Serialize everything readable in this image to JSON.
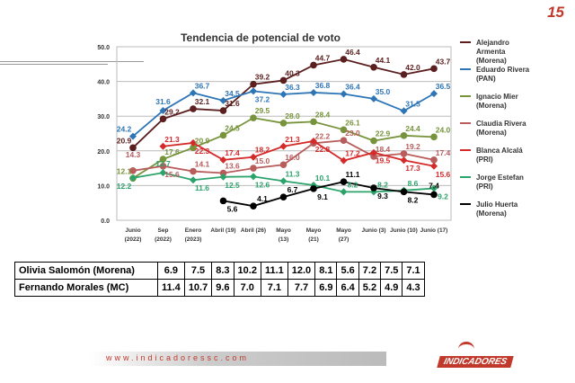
{
  "page_number": "15",
  "chart_data": {
    "type": "line",
    "title": "Tendencia de potencial de voto",
    "ylim": [
      0,
      50
    ],
    "yticks": [
      "0.0",
      "10.0",
      "20.0",
      "30.0",
      "40.0",
      "50.0"
    ],
    "categories": [
      [
        "Junio",
        "(2022)"
      ],
      [
        "Sep",
        "(2022)"
      ],
      [
        "Enero",
        "(2023)"
      ],
      [
        "Abril (19)",
        ""
      ],
      [
        "Abril (26)",
        ""
      ],
      [
        "Mayo",
        "(13)"
      ],
      [
        "Mayo",
        "(21)"
      ],
      [
        "Mayo",
        "(27)"
      ],
      [
        "Junio (3)",
        ""
      ],
      [
        "Junio (10)",
        ""
      ],
      [
        "Junio (17)",
        ""
      ]
    ],
    "series": [
      {
        "name": "Alejandro Armenta (Morena)",
        "legend": [
          "Alejandro",
          "Armenta",
          "(Morena)"
        ],
        "color": "#5b1f1f",
        "marker": "circle",
        "values": [
          20.9,
          29.2,
          32.1,
          31.6,
          39.2,
          40.3,
          44.7,
          46.4,
          44.1,
          42.0,
          43.7
        ]
      },
      {
        "name": "Eduardo Rivera (PAN)",
        "legend": [
          "Eduardo Rivera",
          "(PAN)"
        ],
        "color": "#2e75b6",
        "marker": "diamond",
        "values": [
          24.2,
          31.6,
          36.7,
          34.5,
          37.2,
          36.3,
          36.8,
          36.4,
          35.0,
          31.5,
          36.5
        ]
      },
      {
        "name": "Ignacio Mier (Morena)",
        "legend": [
          "Ignacio Mier",
          "(Morena)"
        ],
        "color": "#77933c",
        "marker": "circle",
        "values": [
          12.1,
          17.6,
          20.9,
          24.5,
          29.5,
          28.0,
          28.4,
          26.1,
          22.9,
          24.4,
          24.0
        ]
      },
      {
        "name": "Claudia Rivera (Morena)",
        "legend": [
          "Claudia Rivera",
          "(Morena)"
        ],
        "color": "#b85c5c",
        "marker": "circle",
        "values": [
          14.3,
          15.6,
          14.1,
          13.6,
          15.0,
          16.0,
          22.2,
          23.0,
          18.4,
          19.2,
          17.4
        ]
      },
      {
        "name": "Blanca Alcalá (PRI)",
        "legend": [
          "Blanca Alcalá",
          "(PRI)"
        ],
        "color": "#d42a2a",
        "marker": "diamond",
        "values": [
          null,
          21.3,
          22.3,
          17.4,
          18.2,
          21.3,
          22.8,
          17.2,
          19.5,
          17.3,
          15.6
        ]
      },
      {
        "name": "Jorge Estefan (PRI)",
        "legend": [
          "Jorge Estefan",
          "(PRI)"
        ],
        "color": "#2ca36b",
        "marker": "diamond",
        "values": [
          12.2,
          13.7,
          11.6,
          12.5,
          12.6,
          11.3,
          10.1,
          8.2,
          8.2,
          8.6,
          9.2
        ]
      },
      {
        "name": "Julio Huerta (Morena)",
        "legend": [
          "Julio Huerta",
          "(Morena)"
        ],
        "color": "#000000",
        "marker": "circle",
        "values": [
          null,
          null,
          null,
          5.6,
          4.1,
          6.7,
          9.1,
          11.1,
          9.3,
          8.2,
          7.4
        ]
      }
    ]
  },
  "table": [
    {
      "name": "Olivia Salomón (Morena)",
      "values": [
        "6.9",
        "7.5",
        "8.3",
        "10.2",
        "11.1",
        "12.0",
        "8.1",
        "5.6",
        "7.2",
        "7.5",
        "7.1"
      ]
    },
    {
      "name": "Fernando Morales (MC)",
      "values": [
        "11.4",
        "10.7",
        "9.6",
        "7.0",
        "7.1",
        "7.7",
        "6.9",
        "6.4",
        "5.2",
        "4.9",
        "4.3"
      ]
    }
  ],
  "footer": {
    "url": "www.indicadoressc.com",
    "logo": "INDICADORES"
  }
}
